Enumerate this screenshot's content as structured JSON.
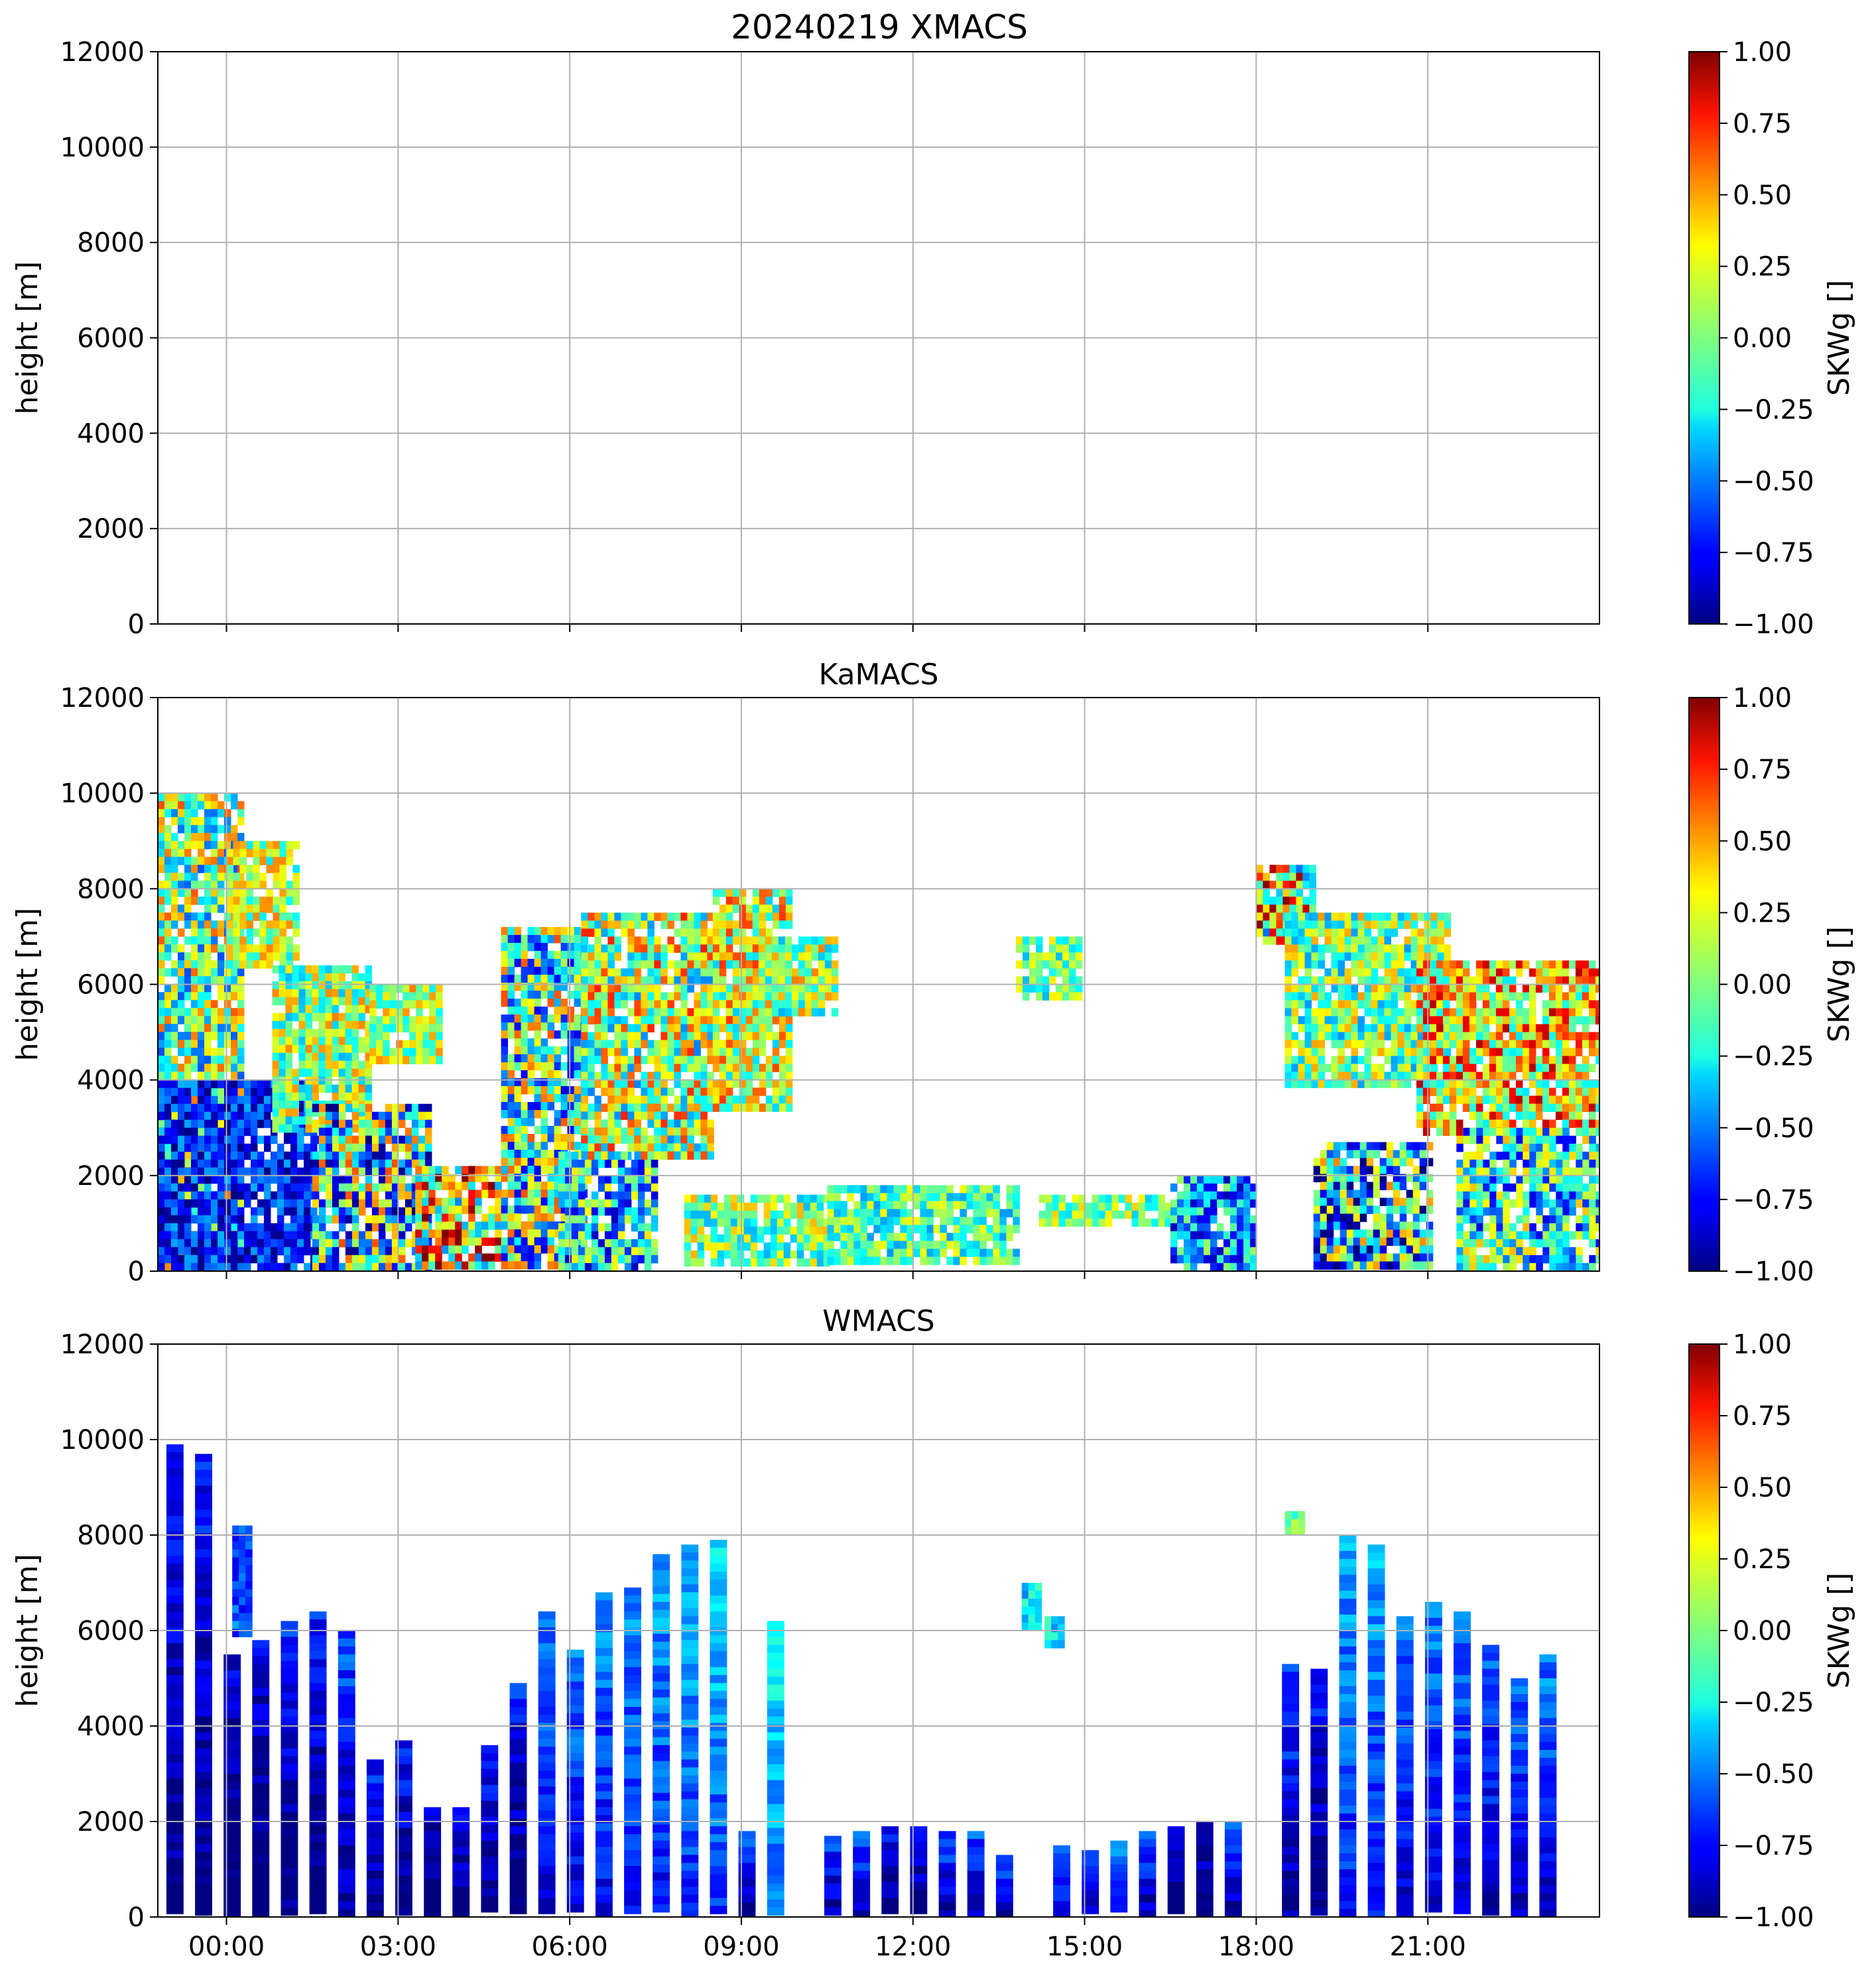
{
  "figure": {
    "suptitle": "20240219 XMACS"
  },
  "chart_data": [
    {
      "type": "heatmap",
      "title": "",
      "instrument": "XMACS",
      "ylabel": "height [m]",
      "ylim": [
        0,
        12000
      ],
      "yticks": [
        "0",
        "2000",
        "4000",
        "6000",
        "8000",
        "10000",
        "12000"
      ],
      "xlim_hours": [
        -1.2,
        24.0
      ],
      "xticks": [
        "00:00",
        "03:00",
        "06:00",
        "09:00",
        "12:00",
        "15:00",
        "18:00",
        "21:00"
      ],
      "xtick_hours": [
        0,
        3,
        6,
        9,
        12,
        15,
        18,
        21
      ],
      "show_xticklabels": false,
      "grid": true,
      "colorbar": {
        "label": "SKWg []",
        "range": [
          -1,
          1
        ],
        "ticks": [
          "1.00",
          "0.75",
          "0.50",
          "0.25",
          "0.00",
          "−0.25",
          "−0.50",
          "−0.75",
          "−1.00"
        ],
        "colormap": "jet"
      },
      "regions": []
    },
    {
      "type": "heatmap",
      "title": "KaMACS",
      "ylabel": "height [m]",
      "ylim": [
        0,
        12000
      ],
      "yticks": [
        "0",
        "2000",
        "4000",
        "6000",
        "8000",
        "10000",
        "12000"
      ],
      "xlim_hours": [
        -1.2,
        24.0
      ],
      "xticks": [
        "00:00",
        "03:00",
        "06:00",
        "09:00",
        "12:00",
        "15:00",
        "18:00",
        "21:00"
      ],
      "xtick_hours": [
        0,
        3,
        6,
        9,
        12,
        15,
        18,
        21
      ],
      "show_xticklabels": false,
      "grid": true,
      "colorbar": {
        "label": "SKWg []",
        "range": [
          -1,
          1
        ],
        "ticks": [
          "1.00",
          "0.75",
          "0.50",
          "0.25",
          "0.00",
          "−0.25",
          "−0.50",
          "−0.75",
          "−1.00"
        ],
        "colormap": "jet"
      },
      "regions": [
        {
          "t0": -1.2,
          "t1": 0.2,
          "h0": 150,
          "h1": 10000,
          "mean": 0.0,
          "spread": 0.6
        },
        {
          "t0": -1.2,
          "t1": 1.5,
          "h0": 150,
          "h1": 4000,
          "mean": -0.7,
          "spread": 0.3
        },
        {
          "t0": 0.0,
          "t1": 1.2,
          "h0": 6500,
          "h1": 9000,
          "mean": 0.1,
          "spread": 0.4
        },
        {
          "t0": 0.8,
          "t1": 2.5,
          "h0": 3000,
          "h1": 6400,
          "mean": 0.05,
          "spread": 0.45
        },
        {
          "t0": 2.5,
          "t1": 3.7,
          "h0": 4500,
          "h1": 6000,
          "mean": 0.1,
          "spread": 0.4
        },
        {
          "t0": 1.5,
          "t1": 3.5,
          "h0": 150,
          "h1": 3500,
          "mean": -0.2,
          "spread": 0.8
        },
        {
          "t0": 3.3,
          "t1": 4.8,
          "h0": 150,
          "h1": 2200,
          "mean": 0.3,
          "spread": 0.8
        },
        {
          "t0": 4.8,
          "t1": 6.3,
          "h0": 150,
          "h1": 7200,
          "mean": -0.1,
          "spread": 0.7
        },
        {
          "t0": 5.8,
          "t1": 7.5,
          "h0": 150,
          "h1": 2500,
          "mean": -0.3,
          "spread": 0.6
        },
        {
          "t0": 6.2,
          "t1": 8.5,
          "h0": 2500,
          "h1": 7500,
          "mean": 0.1,
          "spread": 0.6
        },
        {
          "t0": 8.5,
          "t1": 9.8,
          "h0": 3500,
          "h1": 8000,
          "mean": 0.15,
          "spread": 0.5
        },
        {
          "t0": 9.3,
          "t1": 10.6,
          "h0": 5500,
          "h1": 7000,
          "mean": 0.05,
          "spread": 0.45
        },
        {
          "t0": 8.0,
          "t1": 10.5,
          "h0": 150,
          "h1": 1600,
          "mean": 0.0,
          "spread": 0.4
        },
        {
          "t0": 10.5,
          "t1": 13.8,
          "h0": 150,
          "h1": 1800,
          "mean": -0.1,
          "spread": 0.35
        },
        {
          "t0": 13.8,
          "t1": 14.9,
          "h0": 5800,
          "h1": 7000,
          "mean": -0.05,
          "spread": 0.35
        },
        {
          "t0": 14.2,
          "t1": 16.5,
          "h0": 1000,
          "h1": 1600,
          "mean": 0.0,
          "spread": 0.35
        },
        {
          "t0": 16.5,
          "t1": 18.0,
          "h0": 150,
          "h1": 2000,
          "mean": -0.4,
          "spread": 0.5
        },
        {
          "t0": 18.0,
          "t1": 19.0,
          "h0": 7000,
          "h1": 8500,
          "mean": 0.2,
          "spread": 0.8
        },
        {
          "t0": 18.5,
          "t1": 21.3,
          "h0": 4000,
          "h1": 7500,
          "mean": 0.0,
          "spread": 0.45
        },
        {
          "t0": 19.0,
          "t1": 21.0,
          "h0": 150,
          "h1": 2700,
          "mean": -0.3,
          "spread": 0.8
        },
        {
          "t0": 20.8,
          "t1": 24.0,
          "h0": 3000,
          "h1": 6500,
          "mean": 0.3,
          "spread": 0.6
        },
        {
          "t0": 21.5,
          "t1": 24.0,
          "h0": 150,
          "h1": 3000,
          "mean": -0.2,
          "spread": 0.6
        }
      ]
    },
    {
      "type": "heatmap",
      "title": "WMACS",
      "ylabel": "height [m]",
      "ylim": [
        0,
        12000
      ],
      "yticks": [
        "0",
        "2000",
        "4000",
        "6000",
        "8000",
        "10000",
        "12000"
      ],
      "xlim_hours": [
        -1.2,
        24.0
      ],
      "xticks": [
        "00:00",
        "03:00",
        "06:00",
        "09:00",
        "12:00",
        "15:00",
        "18:00",
        "21:00"
      ],
      "xtick_hours": [
        0,
        3,
        6,
        9,
        12,
        15,
        18,
        21
      ],
      "show_xticklabels": true,
      "grid": true,
      "colorbar": {
        "label": "SKWg []",
        "range": [
          -1,
          1
        ],
        "ticks": [
          "1.00",
          "0.75",
          "0.50",
          "0.25",
          "0.00",
          "−0.25",
          "−0.50",
          "−0.75",
          "−1.00"
        ],
        "colormap": "jet"
      },
      "stripes": [
        {
          "t": -1.05,
          "top": 9900,
          "mean": -0.7
        },
        {
          "t": -0.55,
          "top": 9700,
          "mean": -0.7
        },
        {
          "t": -0.05,
          "top": 5500,
          "mean": -0.8
        },
        {
          "t": 0.45,
          "top": 5800,
          "mean": -0.8
        },
        {
          "t": 0.95,
          "top": 6200,
          "mean": -0.7
        },
        {
          "t": 1.45,
          "top": 6400,
          "mean": -0.7
        },
        {
          "t": 1.95,
          "top": 6000,
          "mean": -0.6
        },
        {
          "t": 2.45,
          "top": 3300,
          "mean": -0.7
        },
        {
          "t": 2.95,
          "top": 3700,
          "mean": -0.7
        },
        {
          "t": 3.45,
          "top": 2300,
          "mean": -0.8
        },
        {
          "t": 3.95,
          "top": 2300,
          "mean": -0.7
        },
        {
          "t": 4.45,
          "top": 3600,
          "mean": -0.7
        },
        {
          "t": 4.95,
          "top": 4900,
          "mean": -0.7
        },
        {
          "t": 5.45,
          "top": 6400,
          "mean": -0.5
        },
        {
          "t": 5.95,
          "top": 5600,
          "mean": -0.5
        },
        {
          "t": 6.45,
          "top": 6800,
          "mean": -0.45
        },
        {
          "t": 6.95,
          "top": 6900,
          "mean": -0.45
        },
        {
          "t": 7.45,
          "top": 7600,
          "mean": -0.4
        },
        {
          "t": 7.95,
          "top": 7800,
          "mean": -0.35
        },
        {
          "t": 8.45,
          "top": 7900,
          "mean": -0.3
        },
        {
          "t": 8.95,
          "top": 1800,
          "mean": -0.6
        },
        {
          "t": 9.45,
          "top": 6200,
          "mean": -0.2
        },
        {
          "t": 10.45,
          "top": 1700,
          "mean": -0.6
        },
        {
          "t": 10.95,
          "top": 1800,
          "mean": -0.6
        },
        {
          "t": 11.45,
          "top": 1900,
          "mean": -0.7
        },
        {
          "t": 11.95,
          "top": 1900,
          "mean": -0.7
        },
        {
          "t": 12.45,
          "top": 1800,
          "mean": -0.6
        },
        {
          "t": 12.95,
          "top": 1800,
          "mean": -0.6
        },
        {
          "t": 13.45,
          "top": 1300,
          "mean": -0.6
        },
        {
          "t": 14.45,
          "top": 1500,
          "mean": -0.5
        },
        {
          "t": 14.95,
          "top": 1400,
          "mean": -0.5
        },
        {
          "t": 15.45,
          "top": 1600,
          "mean": -0.5
        },
        {
          "t": 15.95,
          "top": 1800,
          "mean": -0.6
        },
        {
          "t": 16.45,
          "top": 1900,
          "mean": -0.7
        },
        {
          "t": 16.95,
          "top": 2000,
          "mean": -0.8
        },
        {
          "t": 17.45,
          "top": 2000,
          "mean": -0.6
        },
        {
          "t": 18.45,
          "top": 5300,
          "mean": -0.6
        },
        {
          "t": 18.95,
          "top": 5200,
          "mean": -0.7
        },
        {
          "t": 19.45,
          "top": 8000,
          "mean": -0.4
        },
        {
          "t": 19.95,
          "top": 7800,
          "mean": -0.4
        },
        {
          "t": 20.45,
          "top": 6300,
          "mean": -0.5
        },
        {
          "t": 20.95,
          "top": 6600,
          "mean": -0.5
        },
        {
          "t": 21.45,
          "top": 6400,
          "mean": -0.5
        },
        {
          "t": 21.95,
          "top": 5700,
          "mean": -0.55
        },
        {
          "t": 22.45,
          "top": 5000,
          "mean": -0.55
        },
        {
          "t": 22.95,
          "top": 5500,
          "mean": -0.5
        }
      ],
      "blobs": [
        {
          "t0": 0.1,
          "t1": 0.4,
          "h0": 6000,
          "h1": 8200,
          "mean": -0.6
        },
        {
          "t0": 13.9,
          "t1": 14.2,
          "h0": 6000,
          "h1": 7000,
          "mean": -0.3
        },
        {
          "t0": 14.3,
          "t1": 14.6,
          "h0": 5700,
          "h1": 6300,
          "mean": -0.3
        },
        {
          "t0": 18.5,
          "t1": 18.8,
          "h0": 8000,
          "h1": 8500,
          "mean": 0.0
        }
      ]
    }
  ]
}
